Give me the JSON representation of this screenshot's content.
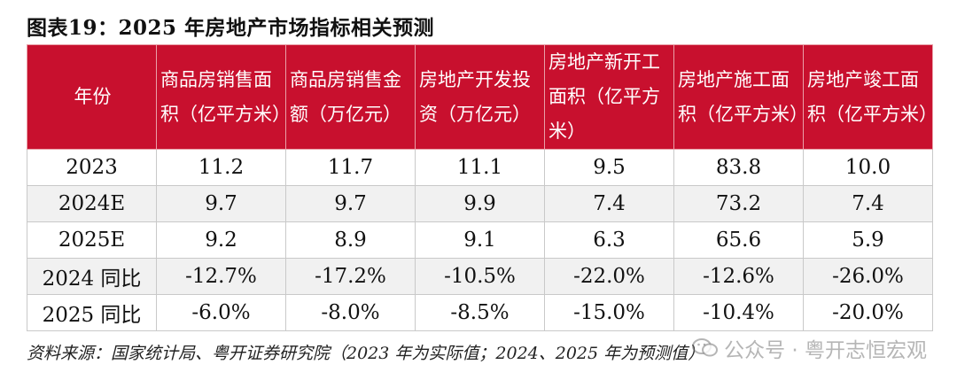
{
  "title": "图表19：2025 年房地产市场指标相关预测",
  "table": {
    "headers": [
      "年份",
      "商品房销售面积（亿平方米）",
      "商品房销售金额（万亿元）",
      "房地产开发投资（万亿元）",
      "房地产新开工面积（亿平方米）",
      "房地产施工面积（亿平方米）",
      "房地产竣工面积（亿平方米）"
    ],
    "rows": [
      [
        "2023",
        "11.2",
        "11.7",
        "11.1",
        "9.5",
        "83.8",
        "10.0"
      ],
      [
        "2024E",
        "9.7",
        "9.7",
        "9.9",
        "7.4",
        "73.2",
        "7.4"
      ],
      [
        "2025E",
        "9.2",
        "8.9",
        "9.1",
        "6.3",
        "65.6",
        "5.9"
      ],
      [
        "2024 同比",
        "-12.7%",
        "-17.2%",
        "-10.5%",
        "-22.0%",
        "-12.6%",
        "-26.0%"
      ],
      [
        "2025 同比",
        "-6.0%",
        "-8.0%",
        "-8.5%",
        "-15.0%",
        "-10.4%",
        "-20.0%"
      ]
    ]
  },
  "source": "资料来源：国家统计局、粤开证券研究院（2023 年为实际值；2024、2025 年为预测值）",
  "watermark": "公众号 · 粤开志恒宏观",
  "watermark_icon": "wechat-icon",
  "colors": {
    "header_bg": "#c8102e",
    "header_text": "#ffffff",
    "shaded_row": "#f1f1f1"
  }
}
